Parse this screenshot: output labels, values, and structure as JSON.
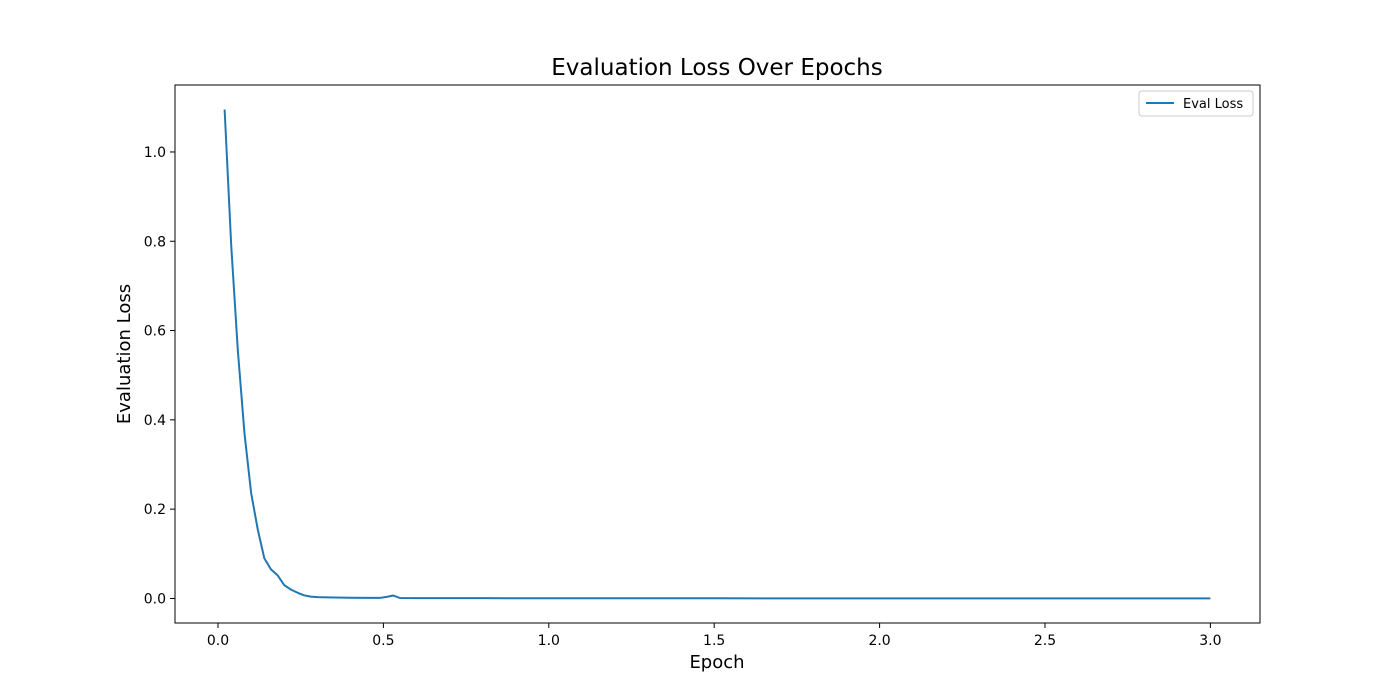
{
  "chart_data": {
    "type": "line",
    "title": "Evaluation Loss Over Epochs",
    "xlabel": "Epoch",
    "ylabel": "Evaluation Loss",
    "xlim": [
      -0.13,
      3.15
    ],
    "ylim": [
      -0.055,
      1.15
    ],
    "xticks": [
      0.0,
      0.5,
      1.0,
      1.5,
      2.0,
      2.5,
      3.0
    ],
    "xtick_labels": [
      "0.0",
      "0.5",
      "1.0",
      "1.5",
      "2.0",
      "2.5",
      "3.0"
    ],
    "yticks": [
      0.0,
      0.2,
      0.4,
      0.6,
      0.8,
      1.0
    ],
    "ytick_labels": [
      "0.0",
      "0.2",
      "0.4",
      "0.6",
      "0.8",
      "1.0"
    ],
    "grid": false,
    "legend": {
      "placement": "top-right",
      "entries": [
        "Eval Loss"
      ]
    },
    "series": [
      {
        "name": "Eval Loss",
        "color": "#1f77b4",
        "x": [
          0.02,
          0.04,
          0.06,
          0.08,
          0.1,
          0.12,
          0.14,
          0.16,
          0.18,
          0.2,
          0.22,
          0.24,
          0.26,
          0.28,
          0.3,
          0.35,
          0.4,
          0.45,
          0.49,
          0.51,
          0.53,
          0.55,
          0.6,
          0.7,
          0.8,
          1.0,
          1.5,
          2.0,
          2.5,
          3.0
        ],
        "y": [
          1.095,
          0.79,
          0.555,
          0.37,
          0.237,
          0.155,
          0.09,
          0.065,
          0.052,
          0.03,
          0.02,
          0.013,
          0.007,
          0.004,
          0.003,
          0.002,
          0.0015,
          0.0012,
          0.0012,
          0.0035,
          0.0065,
          0.001,
          0.0008,
          0.0007,
          0.0006,
          0.0005,
          0.0003,
          0.0002,
          0.0001,
          0.0001
        ]
      }
    ]
  }
}
